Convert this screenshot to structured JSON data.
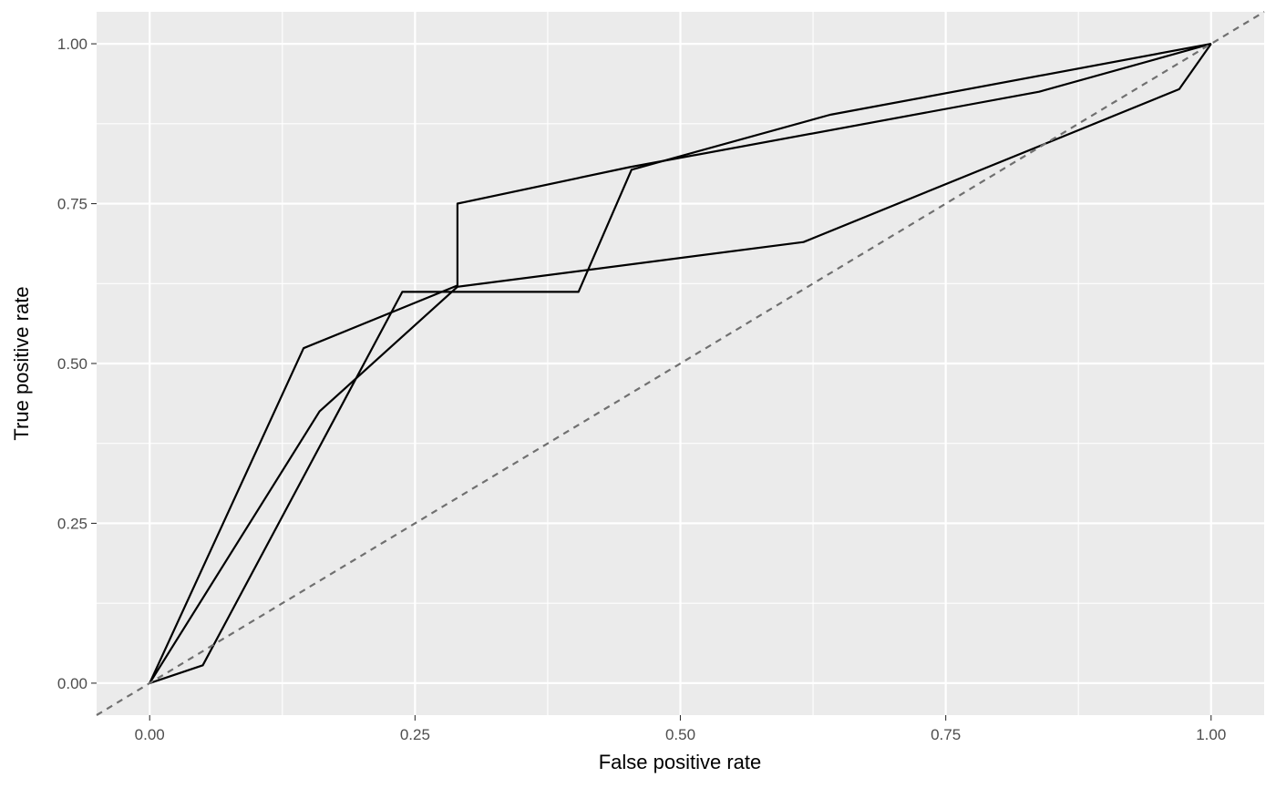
{
  "chart_data": {
    "type": "line",
    "title": "",
    "xlabel": "False positive rate",
    "ylabel": "True positive rate",
    "xlim": [
      -0.05,
      1.05
    ],
    "ylim": [
      -0.05,
      1.05
    ],
    "x_ticks": [
      0,
      0.25,
      0.5,
      0.75,
      1
    ],
    "x_tick_labels": [
      "0.00",
      "0.25",
      "0.50",
      "0.75",
      "1.00"
    ],
    "y_ticks": [
      0,
      0.25,
      0.5,
      0.75,
      1
    ],
    "y_tick_labels": [
      "0.00",
      "0.25",
      "0.50",
      "0.75",
      "1.00"
    ],
    "grid": true,
    "legend": "none",
    "colors": {
      "panel_background": "#ebebeb",
      "grid_line": "#ffffff",
      "series_line": "#000000",
      "reference_line": "#707070"
    },
    "reference_line": {
      "style": "dashed",
      "x": [
        -0.05,
        1.05
      ],
      "y": [
        -0.05,
        1.05
      ]
    },
    "series": [
      {
        "x": [
          0,
          0.145,
          0.29,
          0.29,
          0.452,
          0.838,
          1
        ],
        "y": [
          0,
          0.524,
          0.622,
          0.75,
          0.807,
          0.925,
          1
        ]
      },
      {
        "x": [
          0,
          0.05,
          0.238,
          0.404,
          0.454,
          0.641,
          1
        ],
        "y": [
          0,
          0.028,
          0.612,
          0.612,
          0.803,
          0.889,
          1
        ]
      },
      {
        "x": [
          0,
          0.16,
          0.29,
          0.616,
          0.97,
          1
        ],
        "y": [
          0,
          0.425,
          0.62,
          0.69,
          0.929,
          1
        ]
      }
    ]
  }
}
